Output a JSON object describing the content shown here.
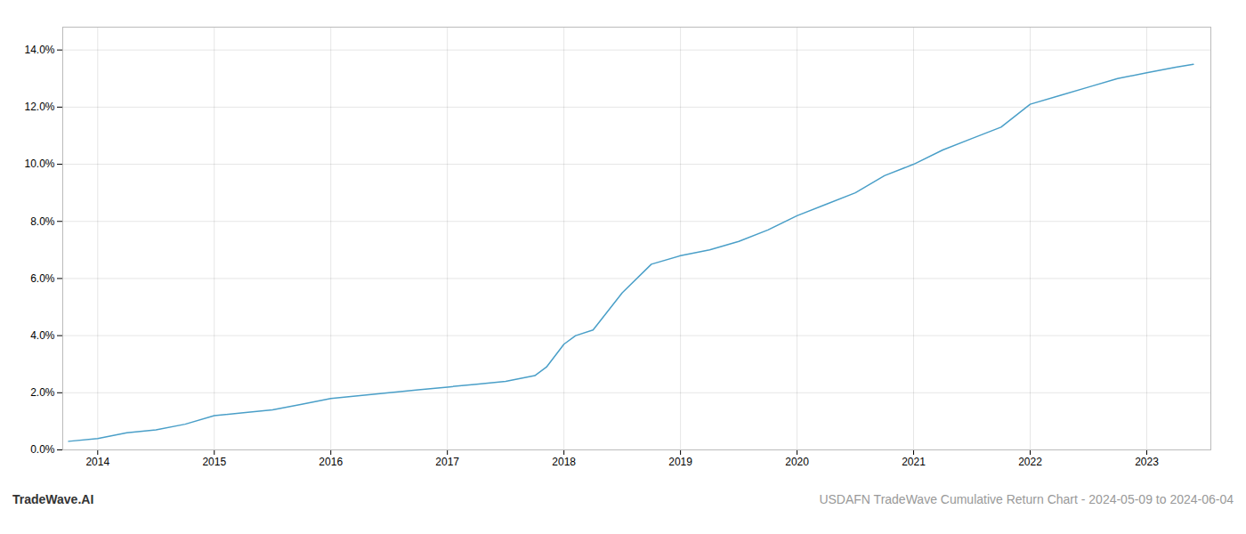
{
  "chart_data": {
    "type": "line",
    "title": "USDAFN TradeWave Cumulative Return Chart - 2024-05-09 to 2024-06-04",
    "annotations": [
      "TradeWave.AI"
    ],
    "x": [
      2013.75,
      2014.0,
      2014.25,
      2014.5,
      2014.75,
      2015.0,
      2015.25,
      2015.5,
      2015.75,
      2016.0,
      2016.25,
      2016.5,
      2016.75,
      2017.0,
      2017.25,
      2017.5,
      2017.75,
      2017.85,
      2018.0,
      2018.1,
      2018.25,
      2018.5,
      2018.75,
      2019.0,
      2019.25,
      2019.5,
      2019.75,
      2020.0,
      2020.25,
      2020.5,
      2020.75,
      2021.0,
      2021.25,
      2021.5,
      2021.75,
      2022.0,
      2022.25,
      2022.5,
      2022.75,
      2023.0,
      2023.25,
      2023.4
    ],
    "values": [
      0.003,
      0.004,
      0.006,
      0.007,
      0.009,
      0.012,
      0.013,
      0.014,
      0.016,
      0.018,
      0.019,
      0.02,
      0.021,
      0.022,
      0.023,
      0.024,
      0.026,
      0.029,
      0.037,
      0.04,
      0.042,
      0.055,
      0.065,
      0.068,
      0.07,
      0.073,
      0.077,
      0.082,
      0.086,
      0.09,
      0.096,
      0.1,
      0.105,
      0.109,
      0.113,
      0.121,
      0.124,
      0.127,
      0.13,
      0.132,
      0.134,
      0.135
    ],
    "color": "#4a9fc8",
    "xlim": [
      2013.7,
      2023.55
    ],
    "ylim": [
      0.0,
      0.148
    ],
    "xticks": [
      2014,
      2015,
      2016,
      2017,
      2018,
      2019,
      2020,
      2021,
      2022,
      2023
    ],
    "yticks": [
      {
        "value": 0.0,
        "label": "0.0%"
      },
      {
        "value": 0.02,
        "label": "2.0%"
      },
      {
        "value": 0.04,
        "label": "4.0%"
      },
      {
        "value": 0.06,
        "label": "6.0%"
      },
      {
        "value": 0.08,
        "label": "8.0%"
      },
      {
        "value": 0.1,
        "label": "10.0%"
      },
      {
        "value": 0.12,
        "label": "12.0%"
      },
      {
        "value": 0.14,
        "label": "14.0%"
      }
    ],
    "grid": true
  }
}
